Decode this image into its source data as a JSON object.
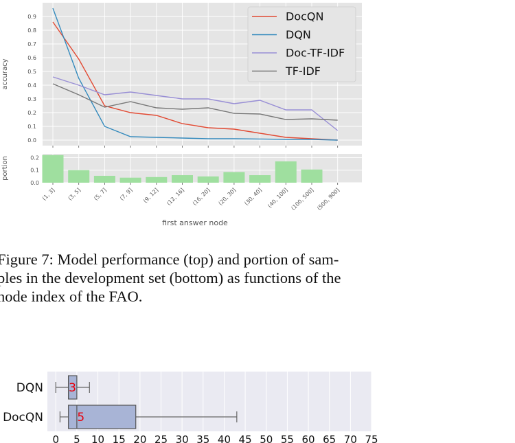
{
  "figure_top": {
    "chart_data": [
      {
        "type": "line",
        "categories": [
          "(1, 3]",
          "(3, 5]",
          "(5, 7]",
          "(7, 9]",
          "(9, 12]",
          "(12, 16]",
          "(16, 20]",
          "(20, 30]",
          "(30, 40]",
          "(40, 100]",
          "(100, 500]",
          "(500, 900]"
        ],
        "ylabel": "accuracy",
        "ylim": [
          -0.04,
          1.0
        ],
        "yticks": [
          0.0,
          0.1,
          0.2,
          0.3,
          0.4,
          0.5,
          0.6,
          0.7,
          0.8,
          0.9
        ],
        "ytick_labels": [
          "0.0",
          "0.1",
          "0.2",
          "0.3",
          "0.4",
          "0.5",
          "0.6",
          "0.7",
          "0.8",
          "0.9"
        ],
        "grid": true,
        "legend": "top-right",
        "series": [
          {
            "name": "DocQN",
            "color": "#e24a33",
            "values": [
              0.86,
              0.59,
              0.25,
              0.2,
              0.18,
              0.12,
              0.09,
              0.08,
              0.05,
              0.02,
              0.01,
              0.0
            ]
          },
          {
            "name": "DQN",
            "color": "#348abd",
            "values": [
              0.96,
              0.45,
              0.1,
              0.025,
              0.02,
              0.015,
              0.01,
              0.01,
              0.008,
              0.005,
              0.005,
              0.0
            ]
          },
          {
            "name": "Doc-TF-IDF",
            "color": "#988ed5",
            "values": [
              0.46,
              0.4,
              0.33,
              0.35,
              0.325,
              0.3,
              0.3,
              0.265,
              0.29,
              0.22,
              0.22,
              0.07
            ]
          },
          {
            "name": "TF-IDF",
            "color": "#777777",
            "values": [
              0.41,
              0.33,
              0.24,
              0.28,
              0.235,
              0.225,
              0.235,
              0.195,
              0.19,
              0.15,
              0.155,
              0.145
            ]
          }
        ]
      },
      {
        "type": "bar",
        "categories": [
          "(1, 3]",
          "(3, 5]",
          "(5, 7]",
          "(7, 9]",
          "(9, 12]",
          "(12, 16]",
          "(16, 20]",
          "(20, 30]",
          "(30, 40]",
          "(40, 100]",
          "(100, 500]",
          "(500, 900]"
        ],
        "values": [
          0.22,
          0.1,
          0.055,
          0.04,
          0.045,
          0.06,
          0.05,
          0.085,
          0.06,
          0.17,
          0.105,
          0.0
        ],
        "color": "#9fdf9f",
        "xlabel": "first answer node",
        "ylabel": "portion",
        "ylim": [
          0,
          0.23
        ],
        "yticks": [
          0.0,
          0.1,
          0.2
        ],
        "ytick_labels": [
          "0.0",
          "0.1",
          "0.2"
        ],
        "grid": true
      }
    ]
  },
  "caption": {
    "line1": "Figure 7: Model performance (top) and portion of sam-",
    "line2": "ples in the development set (bottom) as functions of the",
    "line3": "node index of the FAO."
  },
  "figure_bottom": {
    "chart_data": {
      "type": "box",
      "orientation": "horizontal",
      "categories": [
        "DQN",
        "DocQN"
      ],
      "boxes": [
        {
          "name": "DQN",
          "whisker_low": 0,
          "q1": 3,
          "median": 3,
          "q3": 5,
          "whisker_high": 8,
          "label": "3"
        },
        {
          "name": "DocQN",
          "whisker_low": 1,
          "q1": 3,
          "median": 5,
          "q3": 19,
          "whisker_high": 43,
          "label": "5"
        }
      ],
      "xlim": [
        -2,
        75
      ],
      "xticks": [
        0,
        5,
        10,
        15,
        20,
        25,
        30,
        35,
        40,
        45,
        50,
        55,
        60,
        65,
        70,
        75
      ],
      "xtick_labels": [
        "0",
        "5",
        "10",
        "15",
        "20",
        "25",
        "30",
        "35",
        "40",
        "45",
        "50",
        "55",
        "60",
        "65",
        "70",
        "75"
      ],
      "box_color": "#a8b4d6",
      "label_color": "#e8000b",
      "grid": true
    }
  }
}
